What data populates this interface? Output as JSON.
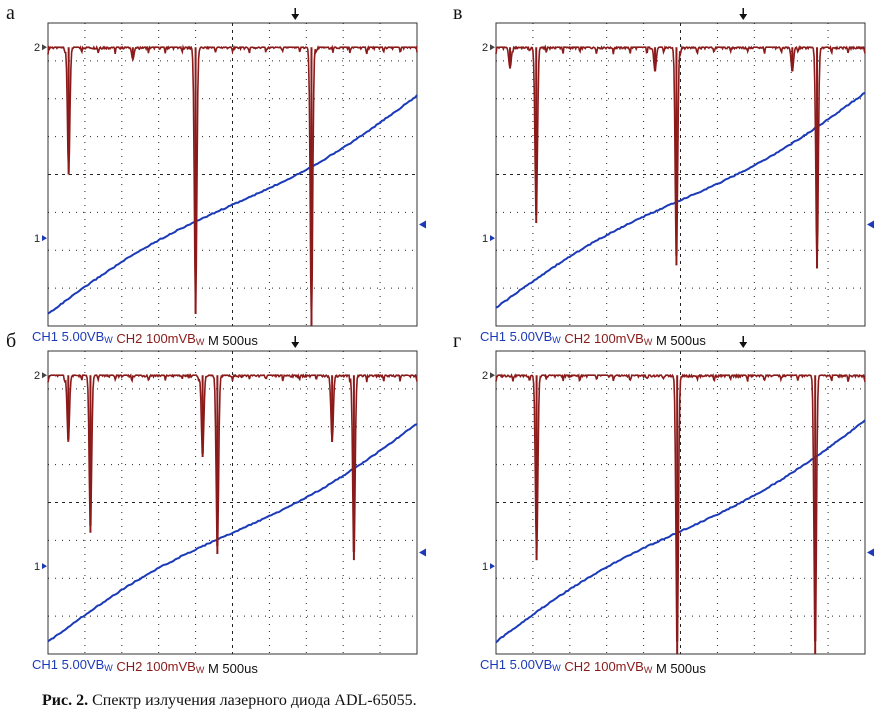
{
  "caption": {
    "prefix": "Рис. 2.",
    "text": "Спектр излучения лазерного диода ADL-65055."
  },
  "colors": {
    "ch1": "#1b3ab8",
    "ch2": "#8b1a1a",
    "grid": "#222222",
    "frame": "#333333"
  },
  "scope_labels": {
    "ch1": "CH1",
    "ch1_scale": "5.00VB",
    "ch1_sub": "W",
    "ch2": "CH2",
    "ch2_scale": "100mVB",
    "ch2_sub": "W",
    "time": "M 500",
    "time_unit": "us",
    "marker_1": "1",
    "marker_2": "2"
  },
  "chart_data": [
    {
      "type": "line",
      "panel_label": "а",
      "series": [
        {
          "channel": "CH1",
          "ramp": [
            [
              0.0,
              0.04
            ],
            [
              1.0,
              0.76
            ]
          ]
        },
        {
          "channel": "CH2",
          "baseline": 0.92,
          "dips": [
            [
              0.056,
              0.5
            ],
            [
              0.087,
              0.92
            ],
            [
              0.23,
              0.88
            ],
            [
              0.4,
              0.04
            ],
            [
              0.714,
              0.0
            ],
            [
              0.794,
              0.92
            ]
          ]
        }
      ]
    },
    {
      "type": "line",
      "panel_label": "в",
      "series": [
        {
          "channel": "CH1",
          "ramp": [
            [
              0.0,
              0.06
            ],
            [
              1.0,
              0.77
            ]
          ]
        },
        {
          "channel": "CH2",
          "baseline": 0.92,
          "dips": [
            [
              0.038,
              0.85
            ],
            [
              0.109,
              0.34
            ],
            [
              0.431,
              0.84
            ],
            [
              0.489,
              0.2
            ],
            [
              0.803,
              0.84
            ],
            [
              0.87,
              0.19
            ]
          ]
        }
      ]
    },
    {
      "type": "line",
      "panel_label": "б",
      "series": [
        {
          "channel": "CH1",
          "ramp": [
            [
              0.0,
              0.04
            ],
            [
              1.0,
              0.76
            ]
          ]
        },
        {
          "channel": "CH2",
          "baseline": 0.92,
          "dips": [
            [
              0.055,
              0.7
            ],
            [
              0.115,
              0.4
            ],
            [
              0.419,
              0.65
            ],
            [
              0.459,
              0.33
            ],
            [
              0.77,
              0.7
            ],
            [
              0.829,
              0.31
            ]
          ]
        }
      ]
    },
    {
      "type": "line",
      "panel_label": "г",
      "series": [
        {
          "channel": "CH1",
          "ramp": [
            [
              0.0,
              0.04
            ],
            [
              1.0,
              0.77
            ]
          ]
        },
        {
          "channel": "CH2",
          "baseline": 0.92,
          "dips": [
            [
              0.11,
              0.31
            ],
            [
              0.491,
              0.0
            ],
            [
              0.865,
              0.0
            ]
          ]
        }
      ]
    }
  ]
}
